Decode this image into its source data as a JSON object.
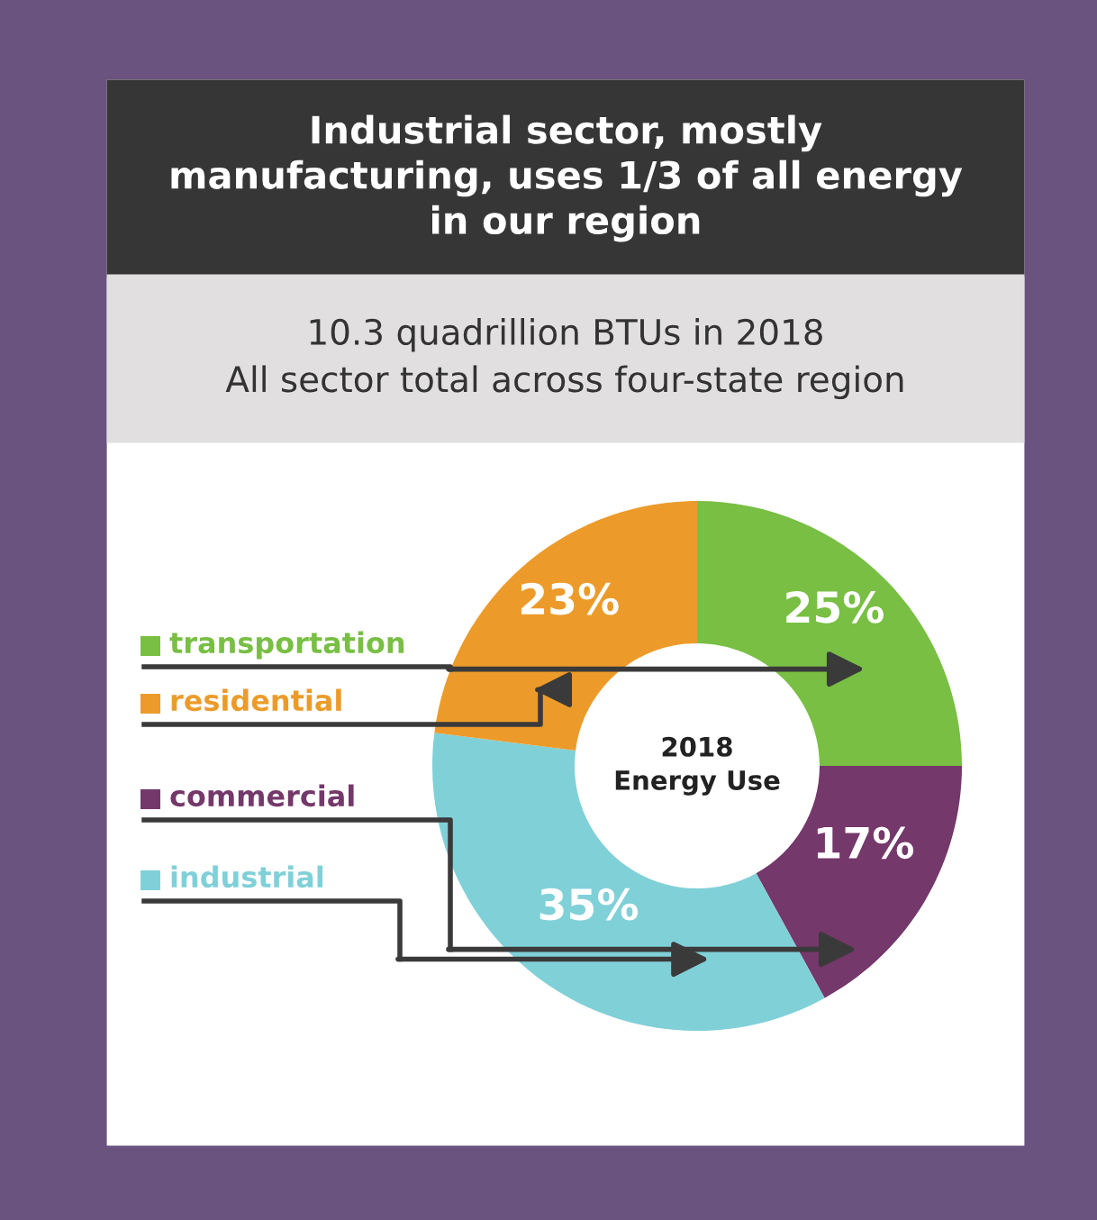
{
  "chart_data": {
    "type": "donut",
    "title": "Industrial sector, mostly manufacturing, uses 1/3 of all energy in our region",
    "subtitle": "10.3 quadrillion BTUs in 2018\nAll sector total across four-state region",
    "categories": [
      "transportation",
      "commercial",
      "industrial",
      "residential"
    ],
    "values": [
      25,
      17,
      35,
      23
    ],
    "value_labels": [
      "25%",
      "17%",
      "35%",
      "23%"
    ],
    "colors": [
      "#78bf43",
      "#74386a",
      "#80d0d8",
      "#ec9b2a"
    ],
    "annotations": [
      "2018\nEnergy Use"
    ],
    "legend": "left"
  }
}
